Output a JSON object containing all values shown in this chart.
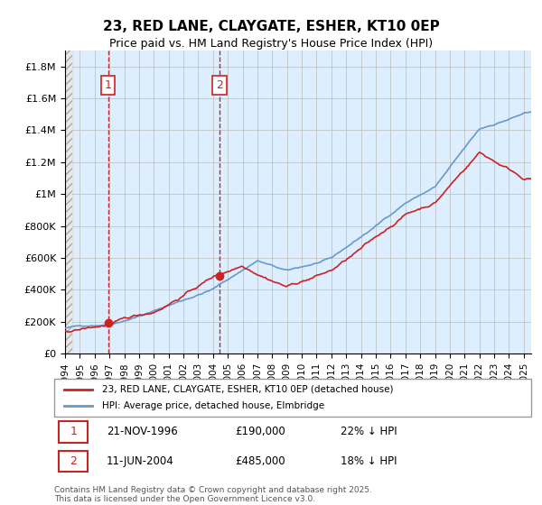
{
  "title": "23, RED LANE, CLAYGATE, ESHER, KT10 0EP",
  "subtitle": "Price paid vs. HM Land Registry's House Price Index (HPI)",
  "ylabel_ticks": [
    "£0",
    "£200K",
    "£400K",
    "£600K",
    "£800K",
    "£1M",
    "£1.2M",
    "£1.4M",
    "£1.6M",
    "£1.8M"
  ],
  "ytick_values": [
    0,
    200000,
    400000,
    600000,
    800000,
    1000000,
    1200000,
    1400000,
    1600000,
    1800000
  ],
  "ylim": [
    0,
    1900000
  ],
  "x_start_year": 1994,
  "x_end_year": 2025,
  "hpi_color": "#6699cc",
  "price_color": "#cc2222",
  "marker1_year": 1996.9,
  "marker1_value": 190000,
  "marker1_label": "1",
  "marker2_year": 2004.45,
  "marker2_value": 485000,
  "marker2_label": "2",
  "legend_house": "23, RED LANE, CLAYGATE, ESHER, KT10 0EP (detached house)",
  "legend_hpi": "HPI: Average price, detached house, Elmbridge",
  "table_row1_num": "1",
  "table_row1_date": "21-NOV-1996",
  "table_row1_price": "£190,000",
  "table_row1_hpi": "22% ↓ HPI",
  "table_row2_num": "2",
  "table_row2_date": "11-JUN-2004",
  "table_row2_price": "£485,000",
  "table_row2_hpi": "18% ↓ HPI",
  "footer": "Contains HM Land Registry data © Crown copyright and database right 2025.\nThis data is licensed under the Open Government Licence v3.0.",
  "background_hatch_color": "#d8d8d8",
  "background_main_color": "#ddeeff",
  "grid_color": "#bbbbbb"
}
